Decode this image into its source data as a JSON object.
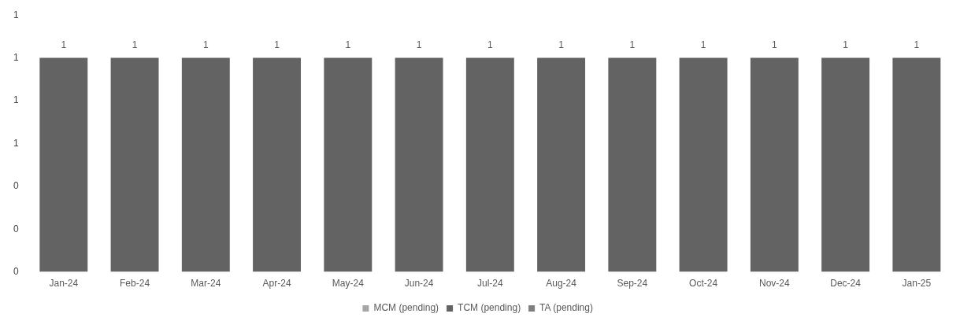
{
  "chart_data": {
    "type": "bar",
    "stacked": true,
    "categories": [
      "Jan-24",
      "Feb-24",
      "Mar-24",
      "Apr-24",
      "May-24",
      "Jun-24",
      "Jul-24",
      "Aug-24",
      "Sep-24",
      "Oct-24",
      "Nov-24",
      "Dec-24",
      "Jan-25"
    ],
    "series": [
      {
        "name": "MCM (pending)",
        "color": "#a6a6a6",
        "values": [
          0,
          0,
          0,
          0,
          0,
          0,
          0,
          0,
          0,
          0,
          0,
          0,
          0
        ]
      },
      {
        "name": "TCM (pending)",
        "color": "#636363",
        "values": [
          1,
          1,
          1,
          1,
          1,
          1,
          1,
          1,
          1,
          1,
          1,
          1,
          1
        ]
      },
      {
        "name": "TA (pending)",
        "color": "#7f7f7f",
        "values": [
          0,
          0,
          0,
          0,
          0,
          0,
          0,
          0,
          0,
          0,
          0,
          0,
          0
        ]
      }
    ],
    "totals": [
      "1",
      "1",
      "1",
      "1",
      "1",
      "1",
      "1",
      "1",
      "1",
      "1",
      "1",
      "1",
      "1"
    ],
    "ylim": [
      0,
      1.2
    ],
    "yticks": [
      0,
      {
        "value": 0.2,
        "label": "0"
      },
      {
        "value": 0.4,
        "label": "0"
      },
      {
        "value": 0.6,
        "label": "1"
      },
      {
        "value": 0.8,
        "label": "1"
      },
      1,
      {
        "value": 1.2,
        "label": "1"
      }
    ],
    "grid": false,
    "legend": "bottom"
  }
}
